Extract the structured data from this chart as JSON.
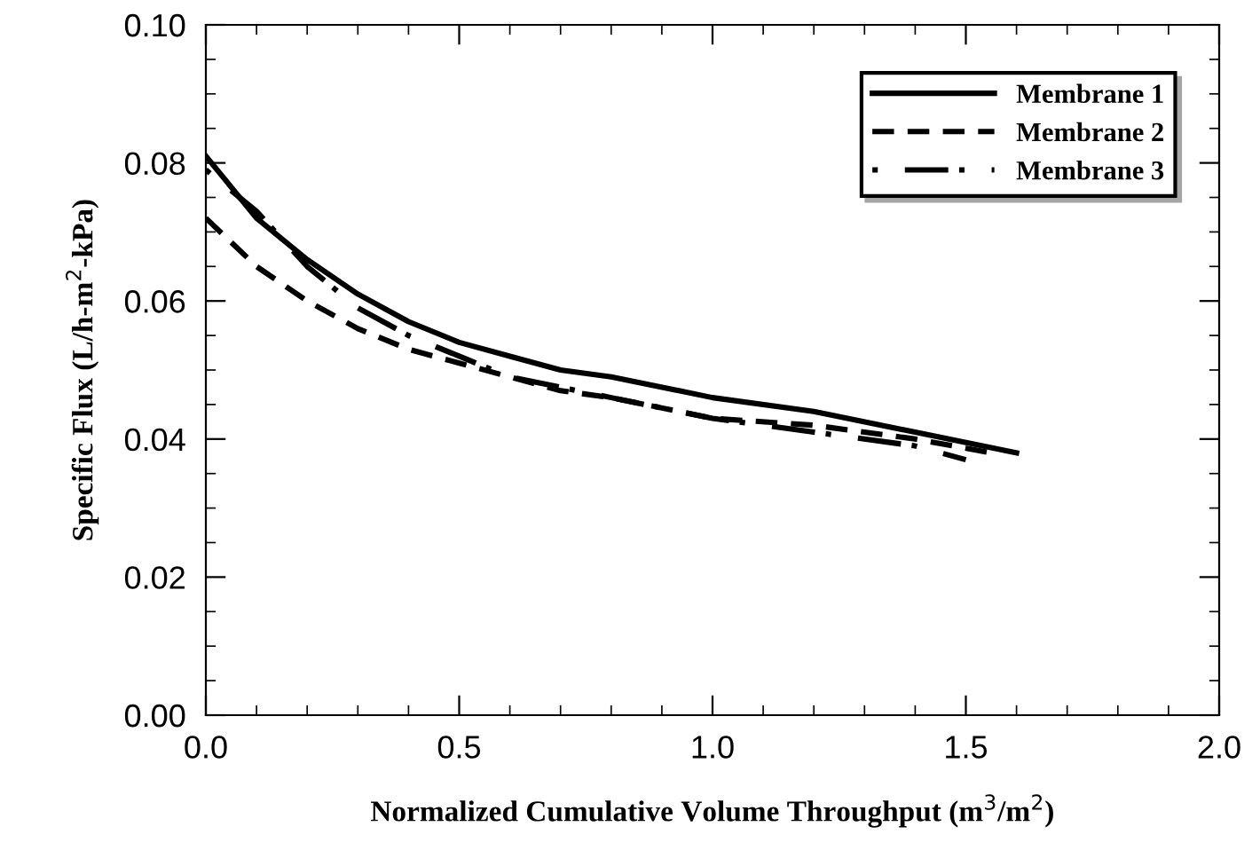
{
  "chart_data": {
    "type": "line",
    "xlabel": "Normalized Cumulative Volume Throughput (m$^{3}$/m$^{2}$)",
    "ylabel": "Specific Flux (L/h-m$^{2}$-kPa)",
    "xlim": [
      0,
      2.0
    ],
    "xticks": [
      {
        "value": 0,
        "label": "0.0"
      },
      0.5,
      {
        "value": 1,
        "label": "1.0"
      },
      1.5,
      {
        "value": 2,
        "label": "2.0"
      }
    ],
    "ylim": [
      0,
      0.1
    ],
    "yticks": [
      {
        "value": 0,
        "label": "0.00"
      },
      {
        "value": 0.02,
        "label": "0.02"
      },
      {
        "value": 0.04,
        "label": "0.04"
      },
      {
        "value": 0.06,
        "label": "0.06"
      },
      {
        "value": 0.08,
        "label": "0.08"
      },
      {
        "value": 0.1,
        "label": "0.10"
      }
    ],
    "grid": false,
    "legend": "top right",
    "marker": "none",
    "series": [
      {
        "name": "Membrane 1",
        "color": "#000000",
        "line_style": "solid",
        "x": [
          0,
          0.1,
          0.2,
          0.3,
          0.4,
          0.5,
          0.6,
          0.7,
          0.8,
          1.0,
          1.2,
          1.4,
          1.6
        ],
        "values": [
          0.081,
          0.072,
          0.066,
          0.061,
          0.057,
          0.054,
          0.052,
          0.05,
          0.049,
          0.046,
          0.044,
          0.041,
          0.038
        ]
      },
      {
        "name": "Membrane 2",
        "color": "#000000",
        "line_style": "dashed",
        "x": [
          0,
          0.1,
          0.2,
          0.3,
          0.4,
          0.5,
          0.6,
          0.7,
          0.8,
          1.0,
          1.2,
          1.4,
          1.55
        ],
        "values": [
          0.072,
          0.065,
          0.06,
          0.056,
          0.053,
          0.051,
          0.049,
          0.047,
          0.046,
          0.043,
          0.042,
          0.04,
          0.038
        ]
      },
      {
        "name": "Membrane 3",
        "color": "#000000",
        "line_style": "dashdot",
        "x": [
          0,
          0.1,
          0.2,
          0.3,
          0.4,
          0.5,
          0.6,
          0.8,
          1.0,
          1.2,
          1.4,
          1.5
        ],
        "values": [
          0.079,
          0.073,
          0.065,
          0.059,
          0.055,
          0.052,
          0.049,
          0.046,
          0.043,
          0.041,
          0.039,
          0.037
        ]
      }
    ]
  }
}
